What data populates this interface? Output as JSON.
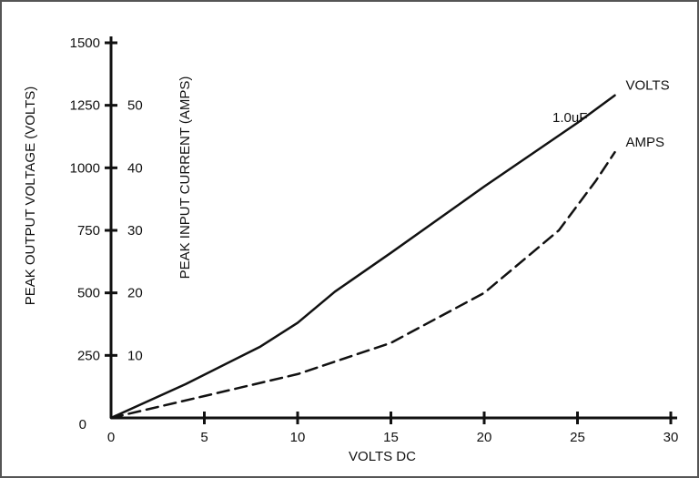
{
  "chart_data": {
    "type": "line",
    "title": "",
    "xlabel": "VOLTS DC",
    "ylabel_left": "PEAK OUTPUT VOLTAGE (VOLTS)",
    "ylabel_inner": "PEAK INPUT CURRENT (AMPS)",
    "x_ticks": [
      0,
      5,
      10,
      15,
      20,
      25,
      30
    ],
    "x_range": [
      0,
      30
    ],
    "y_left_ticks": [
      0,
      250,
      500,
      750,
      1000,
      1250,
      1500
    ],
    "y_left_range": [
      0,
      1500
    ],
    "y_inner_ticks": [
      10,
      20,
      30,
      40,
      50
    ],
    "y_inner_range": [
      0,
      60
    ],
    "grid": false,
    "series": [
      {
        "name": "VOLTS",
        "axis": "left",
        "style": "solid",
        "x": [
          0,
          4,
          8,
          10,
          12,
          15,
          20,
          25,
          27
        ],
        "y": [
          0,
          135,
          285,
          380,
          505,
          660,
          925,
          1180,
          1290
        ]
      },
      {
        "name": "AMPS",
        "axis": "inner",
        "style": "dashed",
        "x": [
          0,
          5,
          10,
          15,
          20,
          24,
          25,
          26,
          27
        ],
        "y": [
          0,
          3.5,
          7,
          12,
          20,
          30,
          34,
          38,
          42.5
        ]
      }
    ],
    "annotations": [
      {
        "text": "1.0uF"
      }
    ]
  }
}
